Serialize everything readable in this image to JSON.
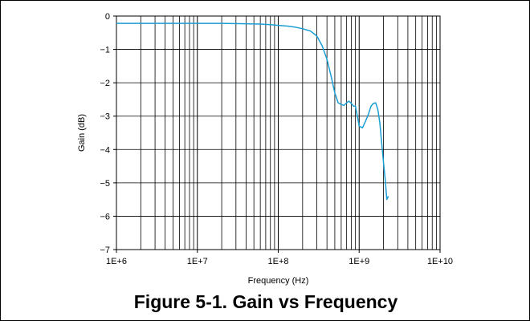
{
  "figure": {
    "caption": "Figure 5-1. Gain vs Frequency"
  },
  "chart_data": {
    "type": "line",
    "title": "",
    "xlabel": "Frequency (Hz)",
    "ylabel": "Gain (dB)",
    "xscale": "log",
    "xlim": [
      1000000,
      10000000000
    ],
    "ylim": [
      -7,
      0
    ],
    "grid": true,
    "x_ticks": [
      1000000,
      10000000,
      100000000,
      1000000000,
      10000000000
    ],
    "x_tick_labels": [
      "1E+6",
      "1E+7",
      "1E+8",
      "1E+9",
      "1E+10"
    ],
    "y_ticks": [
      0,
      -1,
      -2,
      -3,
      -4,
      -5,
      -6,
      -7
    ],
    "y_tick_labels": [
      "0",
      "−1",
      "−2",
      "−3",
      "−4",
      "−5",
      "−6",
      "−7"
    ],
    "series": [
      {
        "color": "#1a9ed4",
        "points": [
          [
            1000000,
            -0.22
          ],
          [
            5000000,
            -0.22
          ],
          [
            10000000,
            -0.22
          ],
          [
            20000000,
            -0.22
          ],
          [
            40000000,
            -0.23
          ],
          [
            60000000,
            -0.24
          ],
          [
            80000000,
            -0.26
          ],
          [
            100000000,
            -0.28
          ],
          [
            130000000,
            -0.3
          ],
          [
            160000000,
            -0.33
          ],
          [
            200000000,
            -0.38
          ],
          [
            250000000,
            -0.45
          ],
          [
            300000000,
            -0.6
          ],
          [
            350000000,
            -0.9
          ],
          [
            400000000,
            -1.3
          ],
          [
            450000000,
            -1.8
          ],
          [
            500000000,
            -2.3
          ],
          [
            550000000,
            -2.6
          ],
          [
            600000000,
            -2.65
          ],
          [
            650000000,
            -2.68
          ],
          [
            700000000,
            -2.6
          ],
          [
            750000000,
            -2.55
          ],
          [
            800000000,
            -2.62
          ],
          [
            850000000,
            -2.7
          ],
          [
            900000000,
            -2.7
          ],
          [
            950000000,
            -3.0
          ],
          [
            1000000000,
            -3.3
          ],
          [
            1100000000,
            -3.35
          ],
          [
            1200000000,
            -3.15
          ],
          [
            1300000000,
            -2.95
          ],
          [
            1400000000,
            -2.7
          ],
          [
            1500000000,
            -2.62
          ],
          [
            1600000000,
            -2.6
          ],
          [
            1700000000,
            -2.8
          ],
          [
            1800000000,
            -3.2
          ],
          [
            1900000000,
            -3.8
          ],
          [
            2000000000,
            -4.4
          ],
          [
            2100000000,
            -4.9
          ],
          [
            2200000000,
            -5.5
          ],
          [
            2300000000,
            -5.4
          ]
        ]
      }
    ]
  }
}
